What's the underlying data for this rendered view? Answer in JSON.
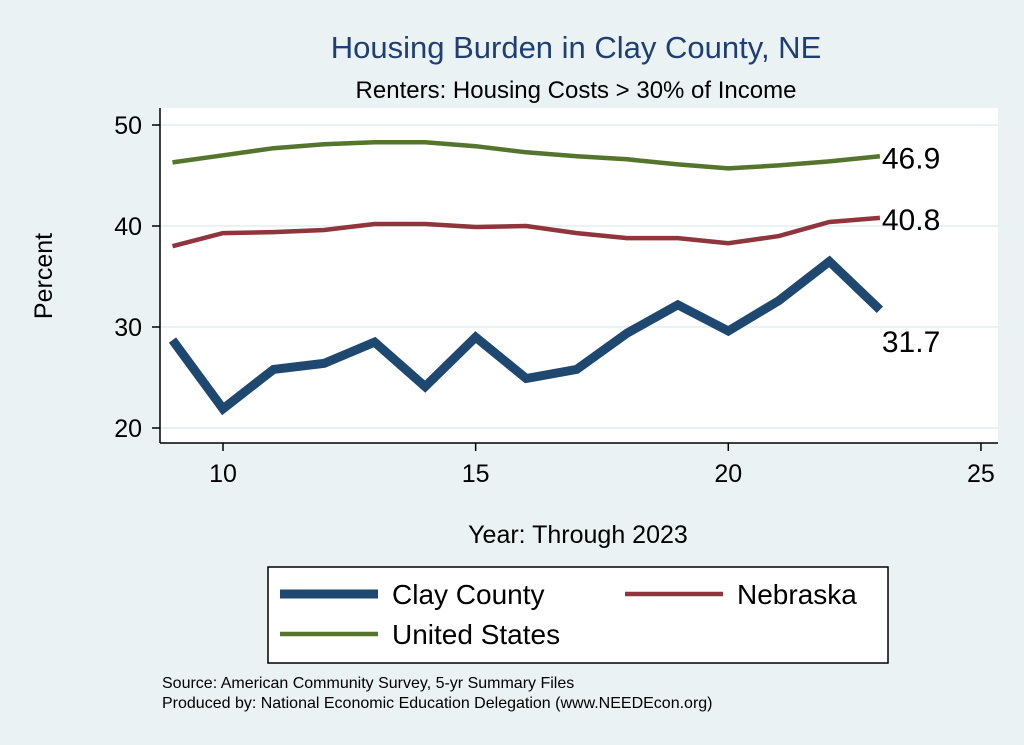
{
  "chart_data": {
    "type": "line",
    "title": "Housing Burden in Clay County, NE",
    "subtitle": "Renters: Housing Costs > 30% of Income",
    "xlabel": "Year: Through 2023",
    "ylabel": "Percent",
    "xlim": [
      8.8,
      25.3
    ],
    "ylim": [
      18.5,
      51.7
    ],
    "xticks": [
      10,
      15,
      20,
      25
    ],
    "yticks": [
      20,
      30,
      40,
      50
    ],
    "grid": true,
    "legend_position": "bottom",
    "x": [
      9,
      10,
      11,
      12,
      13,
      14,
      15,
      16,
      17,
      18,
      19,
      20,
      21,
      22,
      23
    ],
    "series": [
      {
        "name": "Clay County",
        "color": "#1e4870",
        "width": 9,
        "values": [
          28.7,
          21.9,
          25.8,
          26.4,
          28.5,
          24.1,
          29.0,
          24.9,
          25.8,
          29.4,
          32.2,
          29.6,
          32.6,
          36.5,
          31.7
        ],
        "end_label": "31.7"
      },
      {
        "name": "Nebraska",
        "color": "#90353b",
        "width": 4.5,
        "values": [
          38.0,
          39.3,
          39.4,
          39.6,
          40.2,
          40.2,
          39.9,
          40.0,
          39.3,
          38.8,
          38.8,
          38.3,
          39.0,
          40.4,
          40.8
        ],
        "end_label": "40.8"
      },
      {
        "name": "United States",
        "color": "#55752f",
        "width": 4.5,
        "values": [
          46.3,
          47.0,
          47.7,
          48.1,
          48.3,
          48.3,
          47.9,
          47.3,
          46.9,
          46.6,
          46.1,
          45.7,
          46.0,
          46.4,
          46.9
        ],
        "end_label": "46.9"
      }
    ],
    "notes": [
      "Source: American Community Survey, 5-yr Summary Files",
      "Produced by: National Economic Education Delegation (www.NEEDEcon.org)"
    ]
  }
}
